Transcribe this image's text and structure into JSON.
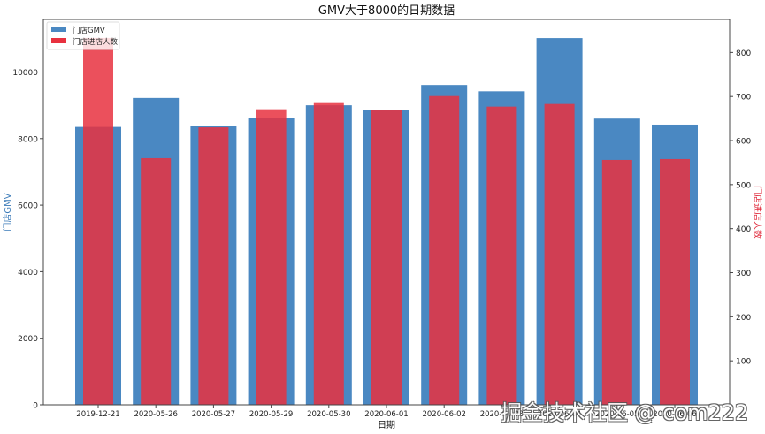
{
  "chart_data": {
    "type": "bar",
    "title": "GMV大于8000的日期数据",
    "xlabel": "日期",
    "ylabel_left": "门店GMV",
    "ylabel_right": "门店进店人数",
    "categories": [
      "2019-12-21",
      "2020-05-26",
      "2020-05-27",
      "2020-05-29",
      "2020-05-30",
      "2020-06-01",
      "2020-06-02",
      "2020-06-03",
      "2020-06-04",
      "2020-06-05",
      "2020-06-06"
    ],
    "series": [
      {
        "name": "门店GMV",
        "axis": "left",
        "color": "#4a88c2",
        "values": [
          8350,
          9220,
          8390,
          8630,
          9000,
          8850,
          9610,
          9420,
          11020,
          8600,
          8420
        ]
      },
      {
        "name": "门店进店人数",
        "axis": "right",
        "color": "#e8313f",
        "values": [
          833,
          560,
          630,
          671,
          687,
          669,
          701,
          677,
          683,
          556,
          558
        ]
      }
    ],
    "ylim_left": [
      0,
      11580
    ],
    "ylim_right": [
      0,
      875
    ],
    "yticks_left": [
      0,
      2000,
      4000,
      6000,
      8000,
      10000
    ],
    "yticks_right": [
      100,
      200,
      300,
      400,
      500,
      600,
      700,
      800
    ],
    "grid": false,
    "legend_position": "upper left"
  },
  "colors": {
    "left_label": "#3a7ab8",
    "right_label": "#e0283a",
    "overlap": "#b52642"
  },
  "watermark": "掘金技术社区 @ com222"
}
